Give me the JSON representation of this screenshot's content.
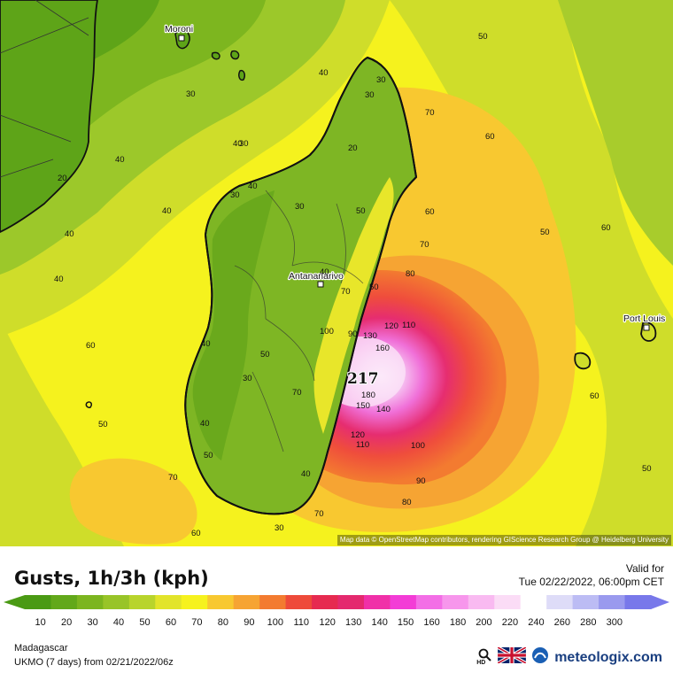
{
  "map": {
    "cities": [
      {
        "name": "Moroni"
      },
      {
        "name": "Antananarivo"
      },
      {
        "name": "Port Louis"
      }
    ],
    "peak_value": "217",
    "attribution": "Map data © OpenStreetMap contributors, rendering GIScience Research Group @ Heidelberg University",
    "contour_labels": [
      "50",
      "30",
      "40",
      "30",
      "30",
      "70",
      "30",
      "60",
      "20",
      "40",
      "40",
      "20",
      "30",
      "40",
      "50",
      "30",
      "60",
      "40",
      "70",
      "50",
      "40",
      "70",
      "80",
      "50",
      "110",
      "120",
      "90",
      "100",
      "130",
      "160",
      "40",
      "70",
      "217",
      "60",
      "180",
      "150",
      "140",
      "50",
      "30",
      "120",
      "110",
      "100",
      "50",
      "40",
      "50",
      "50",
      "90",
      "70",
      "80",
      "60",
      "30",
      "60",
      "40",
      "40",
      "60",
      "70",
      "40"
    ]
  },
  "header": {
    "title": "Gusts, 1h/3h (kph)",
    "valid_label": "Valid for",
    "valid_time": "Tue 02/22/2022, 06:00pm CET"
  },
  "legend": {
    "values": [
      "10",
      "20",
      "30",
      "40",
      "50",
      "60",
      "70",
      "80",
      "90",
      "100",
      "110",
      "120",
      "130",
      "140",
      "150",
      "160",
      "180",
      "200",
      "220",
      "240",
      "260",
      "280",
      "300"
    ],
    "colors": [
      "#4a9a14",
      "#62a81a",
      "#7cb51f",
      "#98c428",
      "#b8d42c",
      "#e2e42a",
      "#f6f21e",
      "#f8c830",
      "#f6a433",
      "#f37b30",
      "#ee4a3a",
      "#e62a50",
      "#e4296e",
      "#f030a8",
      "#f33cd6",
      "#f36ee6",
      "#f796ec",
      "#f9baf1",
      "#fbdcf6",
      "#ffffff",
      "#dedcf8",
      "#bcbcf4",
      "#9a9aee",
      "#7878ea"
    ]
  },
  "footer": {
    "region": "Madagascar",
    "model": "UKMO (7 days) from 02/21/2022/06z",
    "brand": "meteologix.com",
    "search_icon_label": "HD"
  }
}
